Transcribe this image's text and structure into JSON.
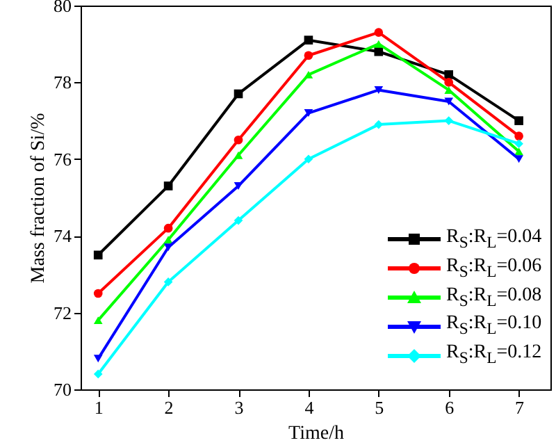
{
  "chart_data": {
    "type": "line",
    "xlabel": "Time/h",
    "ylabel": "Mass fraction of Si/%",
    "x": [
      1,
      2,
      3,
      4,
      5,
      6,
      7
    ],
    "xlim": [
      0.75,
      7.45
    ],
    "xticks": [
      1,
      2,
      3,
      4,
      5,
      6,
      7
    ],
    "ylim": [
      70,
      80
    ],
    "yticks": [
      70,
      72,
      74,
      76,
      78,
      80
    ],
    "grid": false,
    "legend": "bottom right",
    "line_style": "solid",
    "series": [
      {
        "name": "R$_{S}$:R$_{L}$=0.04",
        "color": "#000000",
        "marker": "square",
        "values": [
          73.5,
          75.3,
          77.7,
          79.1,
          78.8,
          78.2,
          77.0
        ]
      },
      {
        "name": "R$_{S}$:R$_{L}$=0.06",
        "color": "#ff0000",
        "marker": "circle",
        "values": [
          72.5,
          74.2,
          76.5,
          78.7,
          79.3,
          78.0,
          76.6
        ]
      },
      {
        "name": "R$_{S}$:R$_{L}$=0.08",
        "color": "#00ff00",
        "marker": "triangle",
        "values": [
          71.8,
          73.9,
          76.1,
          78.2,
          79.0,
          77.8,
          76.2
        ]
      },
      {
        "name": "R$_{S}$:R$_{L}$=0.10",
        "color": "#0000ff",
        "marker": "triangle-down",
        "values": [
          70.8,
          73.7,
          75.3,
          77.2,
          77.8,
          77.5,
          76.0
        ]
      },
      {
        "name": "R$_{S}$:R$_{L}$=0.12",
        "color": "#00ffff",
        "marker": "diamond",
        "values": [
          70.4,
          72.8,
          74.4,
          76.0,
          76.9,
          77.0,
          76.4
        ]
      }
    ]
  }
}
